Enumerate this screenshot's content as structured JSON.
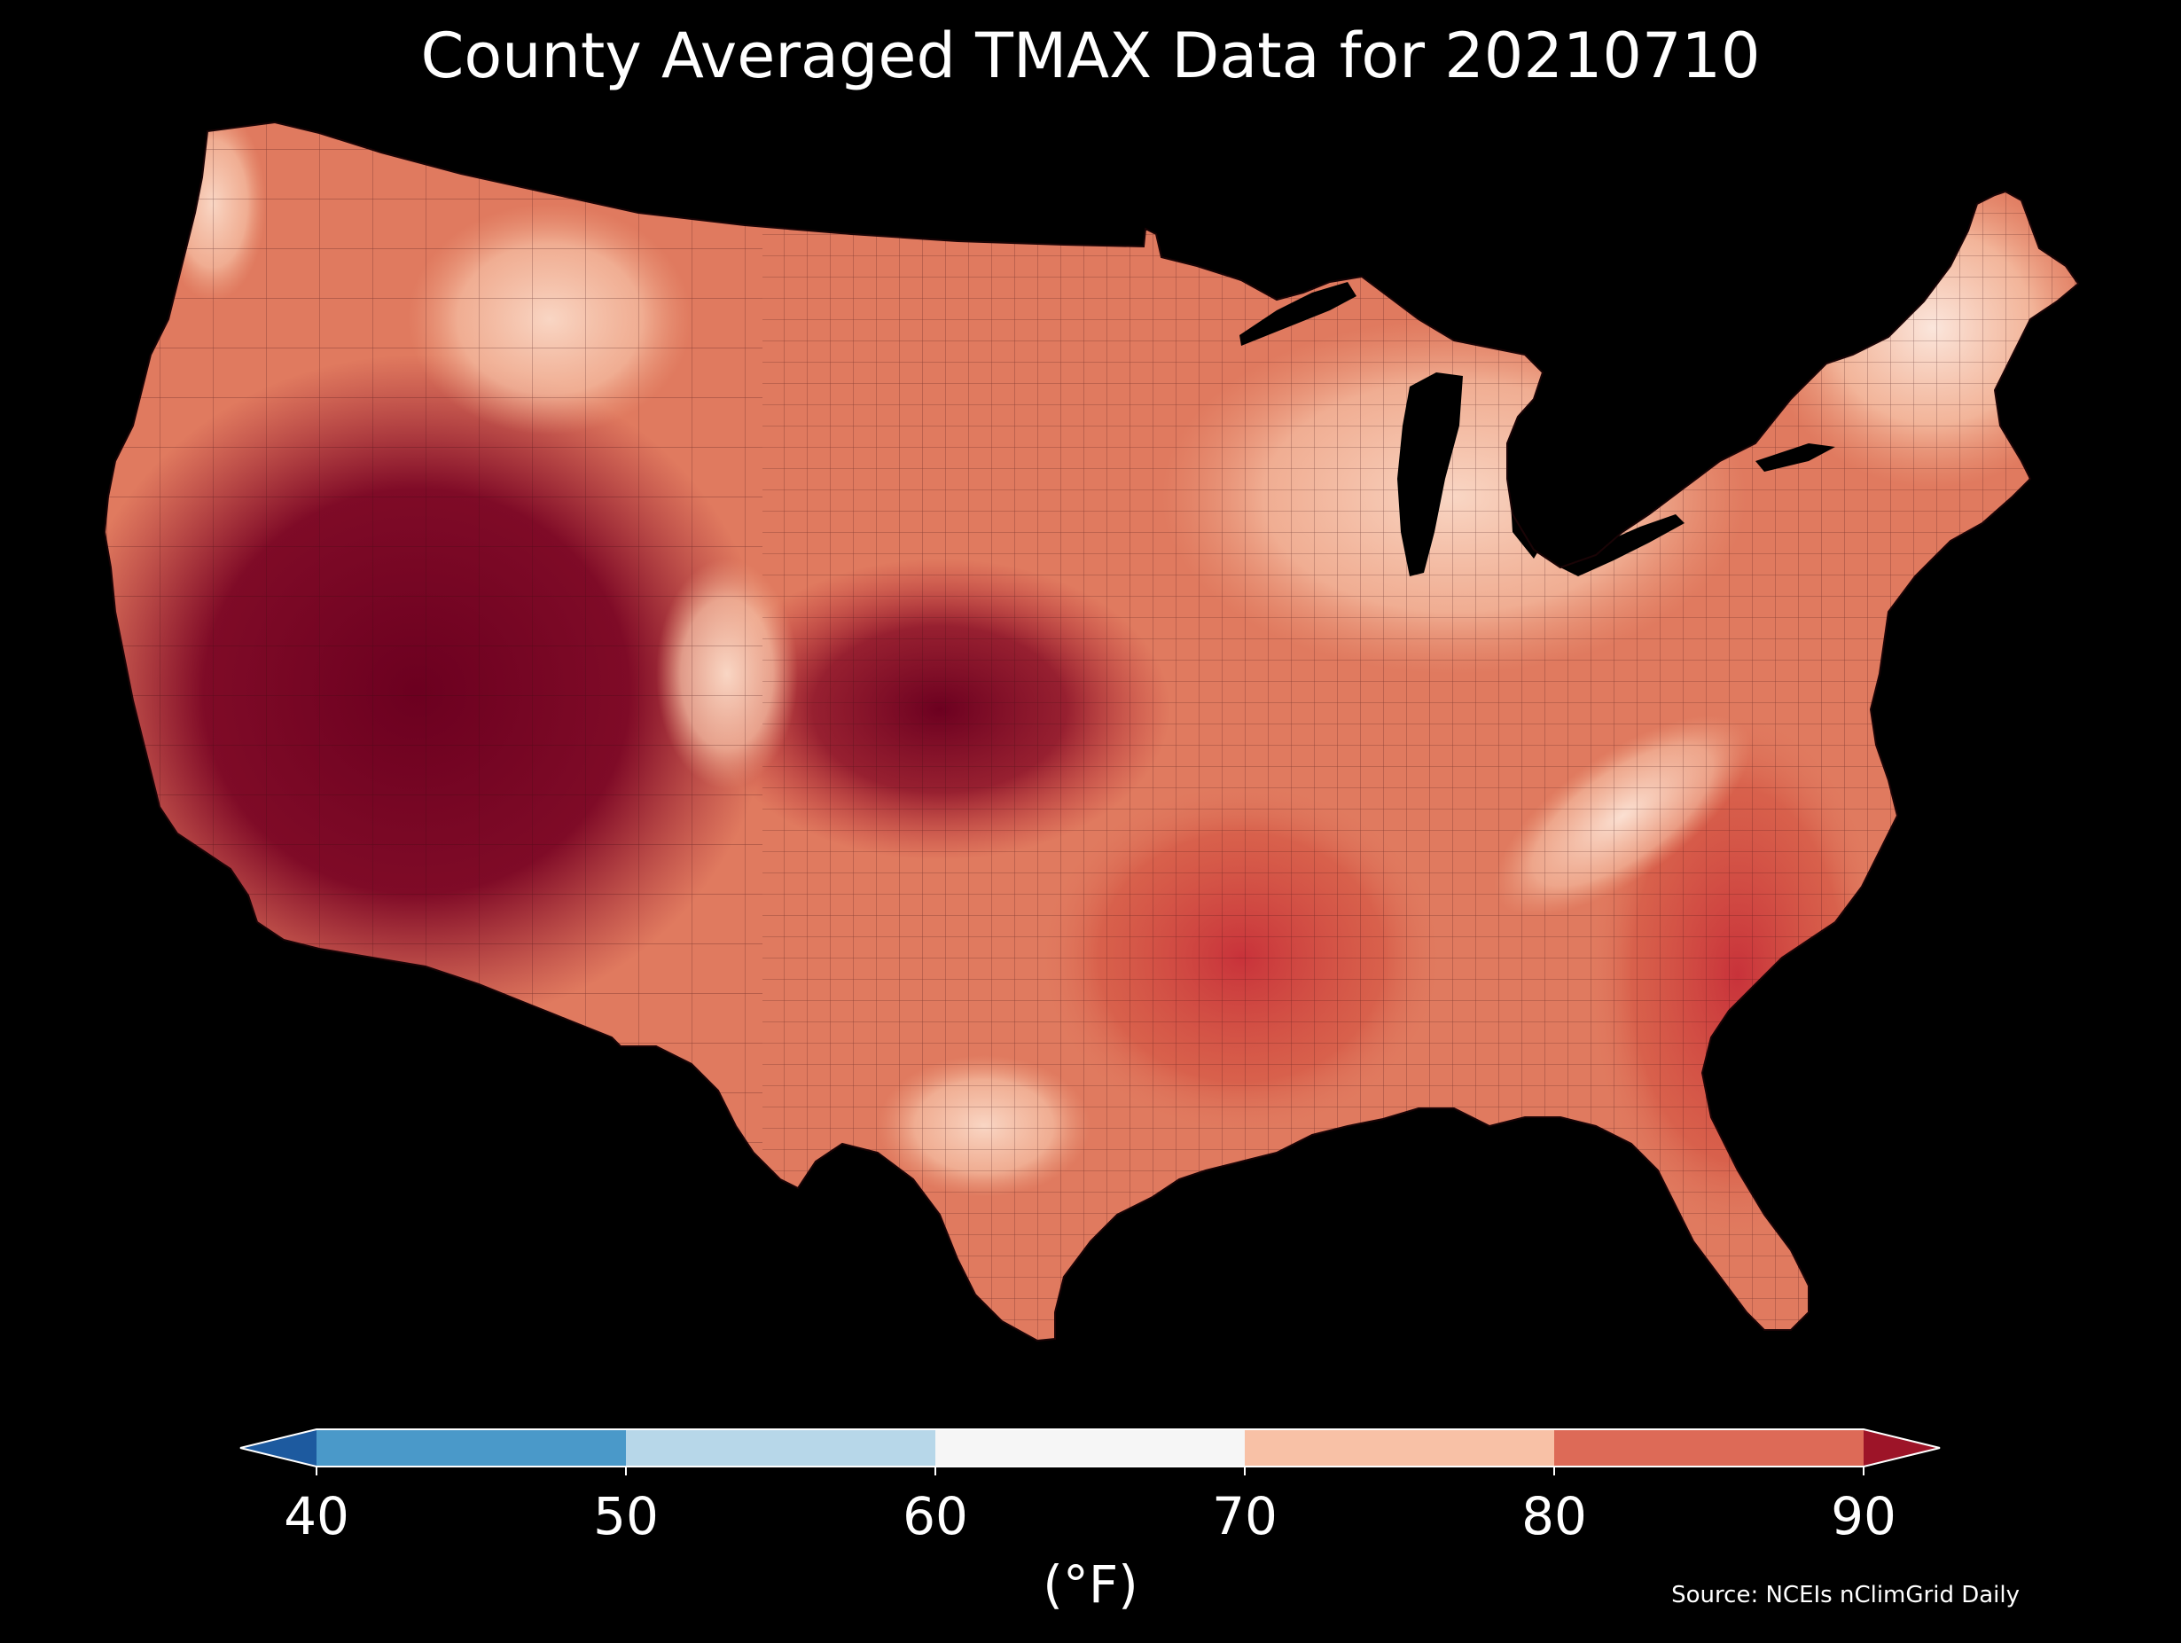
{
  "title": "County Averaged TMAX Data for 20210710",
  "source": "Source: NCEIs nClimGrid Daily",
  "colorbar": {
    "unit": "(°F)",
    "ticks": [
      "40",
      "50",
      "60",
      "70",
      "80",
      "90"
    ],
    "bins": [
      {
        "range": "<40",
        "color": "#1d5a9f"
      },
      {
        "range": "40-50",
        "color": "#4a99c9"
      },
      {
        "range": "50-60",
        "color": "#b7d7e9"
      },
      {
        "range": "60-70",
        "color": "#f6f6f6"
      },
      {
        "range": "70-80",
        "color": "#f8c1a6"
      },
      {
        "range": "80-90",
        "color": "#dd6a57"
      },
      {
        "range": ">90",
        "color": "#9d1428"
      }
    ],
    "extend": "both"
  },
  "map": {
    "region": "Contiguous United States",
    "variable": "TMAX",
    "units": "°F",
    "temperature_palette": {
      "very_light": "#fbe6dc",
      "light": "#f7c3a8",
      "medium_light": "#eda283",
      "medium": "#e07a5f",
      "medium_dark": "#d3503f",
      "dark": "#b82630",
      "very_dark": "#94132a",
      "darkest": "#6c0020"
    },
    "background_color": "#000000",
    "border_color": "#2a0a0a"
  }
}
